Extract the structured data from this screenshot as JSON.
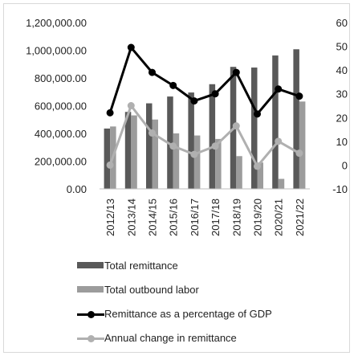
{
  "chart_data": {
    "type": "bar",
    "categories": [
      "2012/13",
      "2013/14",
      "2014/15",
      "2015/16",
      "2016/17",
      "2017/18",
      "2018/19",
      "2019/20",
      "2020/21",
      "2021/22"
    ],
    "series": [
      {
        "name": "Total remittance",
        "type": "bar",
        "axis": "left",
        "color": "#595959",
        "values": [
          435000,
          555000,
          617000,
          666000,
          695000,
          755000,
          880000,
          875000,
          962000,
          1007000
        ]
      },
      {
        "name": "Total outbound labor",
        "type": "bar",
        "axis": "left",
        "color": "#9c9c9c",
        "values": [
          450000,
          530000,
          500000,
          400000,
          385000,
          360000,
          236000,
          190000,
          72000,
          630000
        ]
      },
      {
        "name": "Remittance as a percentage of GDP",
        "type": "line",
        "axis": "right",
        "color": "#000000",
        "values": [
          22,
          49.5,
          39,
          33.5,
          27,
          30,
          39,
          21.5,
          32,
          29
        ]
      },
      {
        "name": "Annual change in remittance",
        "type": "line",
        "axis": "right",
        "color": "#b0b0b0",
        "values": [
          0,
          25,
          13.5,
          8,
          4.5,
          8,
          16.5,
          -0.5,
          10,
          5
        ]
      }
    ],
    "y_left": {
      "min": 0,
      "max": 1200000,
      "ticks": [
        0,
        200000,
        400000,
        600000,
        800000,
        1000000,
        1200000
      ],
      "tick_labels": [
        "0.00",
        "200,000.00",
        "400,000.00",
        "600,000.00",
        "800,000.00",
        "1,000,000.00",
        "1,200,000.00"
      ]
    },
    "y_right": {
      "min": -10,
      "max": 60,
      "ticks": [
        -10,
        0,
        10,
        20,
        30,
        40,
        50,
        60
      ],
      "tick_labels": [
        "-10",
        "0",
        "10",
        "20",
        "30",
        "40",
        "50",
        "60"
      ]
    },
    "grid": false,
    "legend_position": "bottom"
  }
}
